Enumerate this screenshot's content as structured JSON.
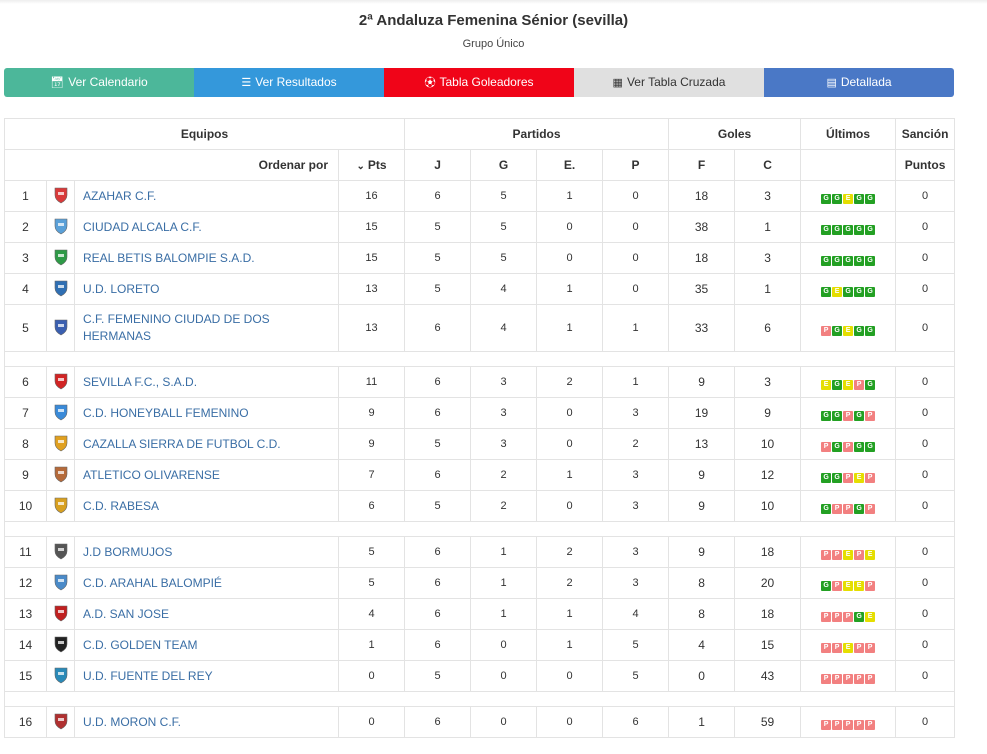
{
  "header": {
    "title": "2ª Andaluza Femenina Sénior (sevilla)",
    "subtitle": "Grupo Único"
  },
  "toolbar": {
    "buttons": [
      {
        "label": "Ver Calendario",
        "icon": "calendar-icon",
        "color": "#4cb79a"
      },
      {
        "label": "Ver Resultados",
        "icon": "list-icon",
        "color": "#3498db"
      },
      {
        "label": "Tabla Goleadores",
        "icon": "soccer-ball-icon",
        "color": "#f00418"
      },
      {
        "label": "Ver Tabla Cruzada",
        "icon": "grid-icon",
        "color": "#e0e0e0"
      },
      {
        "label": "Detallada",
        "icon": "detail-list-icon",
        "color": "#4a78c6"
      }
    ]
  },
  "table": {
    "groups": {
      "equipos": "Equipos",
      "partidos": "Partidos",
      "goles": "Goles",
      "ultimos": "Últimos",
      "sancion": "Sanción"
    },
    "subheaders": {
      "sort_label": "Ordenar por",
      "pts": "Pts",
      "j": "J",
      "g": "G",
      "e": "E.",
      "p": "P",
      "f": "F",
      "c": "C",
      "puntos": "Puntos"
    },
    "rows": [
      {
        "pos": "1",
        "team": "AZAHAR C.F.",
        "pts": "16",
        "j": "6",
        "g": "5",
        "e": "1",
        "p": "0",
        "f": "18",
        "c": "3",
        "last": [
          "G",
          "G",
          "E",
          "G",
          "G"
        ],
        "sancion": "0",
        "crest": "#d93a3a",
        "sep_after": false
      },
      {
        "pos": "2",
        "team": "CIUDAD ALCALA C.F.",
        "pts": "15",
        "j": "5",
        "g": "5",
        "e": "0",
        "p": "0",
        "f": "38",
        "c": "1",
        "last": [
          "G",
          "G",
          "G",
          "G",
          "G"
        ],
        "sancion": "0",
        "crest": "#5aa0d8",
        "sep_after": false
      },
      {
        "pos": "3",
        "team": "REAL BETIS BALOMPIE S.A.D.",
        "pts": "15",
        "j": "5",
        "g": "5",
        "e": "0",
        "p": "0",
        "f": "18",
        "c": "3",
        "last": [
          "G",
          "G",
          "G",
          "G",
          "G"
        ],
        "sancion": "0",
        "crest": "#2e9a47",
        "sep_after": false
      },
      {
        "pos": "4",
        "team": "U.D. LORETO",
        "pts": "13",
        "j": "5",
        "g": "4",
        "e": "1",
        "p": "0",
        "f": "35",
        "c": "1",
        "last": [
          "G",
          "E",
          "G",
          "G",
          "G"
        ],
        "sancion": "0",
        "crest": "#2f6fb3",
        "sep_after": false
      },
      {
        "pos": "5",
        "team": "C.F. FEMENINO CIUDAD DE DOS HERMANAS",
        "pts": "13",
        "j": "6",
        "g": "4",
        "e": "1",
        "p": "1",
        "f": "33",
        "c": "6",
        "last": [
          "P",
          "G",
          "E",
          "G",
          "G"
        ],
        "sancion": "0",
        "crest": "#3a5fb0",
        "sep_after": true,
        "tall": true
      },
      {
        "pos": "6",
        "team": "SEVILLA F.C., S.A.D.",
        "pts": "11",
        "j": "6",
        "g": "3",
        "e": "2",
        "p": "1",
        "f": "9",
        "c": "3",
        "last": [
          "E",
          "G",
          "E",
          "P",
          "G"
        ],
        "sancion": "0",
        "crest": "#d12424",
        "sep_after": false
      },
      {
        "pos": "7",
        "team": "C.D. HONEYBALL FEMENINO",
        "pts": "9",
        "j": "6",
        "g": "3",
        "e": "0",
        "p": "3",
        "f": "19",
        "c": "9",
        "last": [
          "G",
          "G",
          "P",
          "G",
          "P"
        ],
        "sancion": "0",
        "crest": "#3a8ad8",
        "sep_after": false
      },
      {
        "pos": "8",
        "team": "CAZALLA SIERRA DE FUTBOL C.D.",
        "pts": "9",
        "j": "5",
        "g": "3",
        "e": "0",
        "p": "2",
        "f": "13",
        "c": "10",
        "last": [
          "P",
          "G",
          "P",
          "G",
          "G"
        ],
        "sancion": "0",
        "crest": "#e0a020",
        "sep_after": false
      },
      {
        "pos": "9",
        "team": "ATLETICO OLIVARENSE",
        "pts": "7",
        "j": "6",
        "g": "2",
        "e": "1",
        "p": "3",
        "f": "9",
        "c": "12",
        "last": [
          "G",
          "G",
          "P",
          "E",
          "P"
        ],
        "sancion": "0",
        "crest": "#b56a3a",
        "sep_after": false
      },
      {
        "pos": "10",
        "team": "C.D. RABESA",
        "pts": "6",
        "j": "5",
        "g": "2",
        "e": "0",
        "p": "3",
        "f": "9",
        "c": "10",
        "last": [
          "G",
          "P",
          "P",
          "G",
          "P"
        ],
        "sancion": "0",
        "crest": "#d8a020",
        "sep_after": true
      },
      {
        "pos": "11",
        "team": "J.D BORMUJOS",
        "pts": "5",
        "j": "6",
        "g": "1",
        "e": "2",
        "p": "3",
        "f": "9",
        "c": "18",
        "last": [
          "P",
          "P",
          "E",
          "P",
          "E"
        ],
        "sancion": "0",
        "crest": "#555555",
        "sep_after": false
      },
      {
        "pos": "12",
        "team": "C.D. ARAHAL BALOMPIÉ",
        "pts": "5",
        "j": "6",
        "g": "1",
        "e": "2",
        "p": "3",
        "f": "8",
        "c": "20",
        "last": [
          "G",
          "P",
          "E",
          "E",
          "P"
        ],
        "sancion": "0",
        "crest": "#4a8ac8",
        "sep_after": false
      },
      {
        "pos": "13",
        "team": "A.D. SAN JOSE",
        "pts": "4",
        "j": "6",
        "g": "1",
        "e": "1",
        "p": "4",
        "f": "8",
        "c": "18",
        "last": [
          "P",
          "P",
          "P",
          "G",
          "E"
        ],
        "sancion": "0",
        "crest": "#c02020",
        "sep_after": false
      },
      {
        "pos": "14",
        "team": "C.D. GOLDEN TEAM",
        "pts": "1",
        "j": "6",
        "g": "0",
        "e": "1",
        "p": "5",
        "f": "4",
        "c": "15",
        "last": [
          "P",
          "P",
          "E",
          "P",
          "P"
        ],
        "sancion": "0",
        "crest": "#222222",
        "sep_after": false
      },
      {
        "pos": "15",
        "team": "U.D. FUENTE DEL REY",
        "pts": "0",
        "j": "5",
        "g": "0",
        "e": "0",
        "p": "5",
        "f": "0",
        "c": "43",
        "last": [
          "P",
          "P",
          "P",
          "P",
          "P"
        ],
        "sancion": "0",
        "crest": "#2a8ab8",
        "sep_after": true
      },
      {
        "pos": "16",
        "team": "U.D. MORON C.F.",
        "pts": "0",
        "j": "6",
        "g": "0",
        "e": "0",
        "p": "6",
        "f": "1",
        "c": "59",
        "last": [
          "P",
          "P",
          "P",
          "P",
          "P"
        ],
        "sancion": "0",
        "crest": "#b03030",
        "sep_after": false
      }
    ]
  }
}
